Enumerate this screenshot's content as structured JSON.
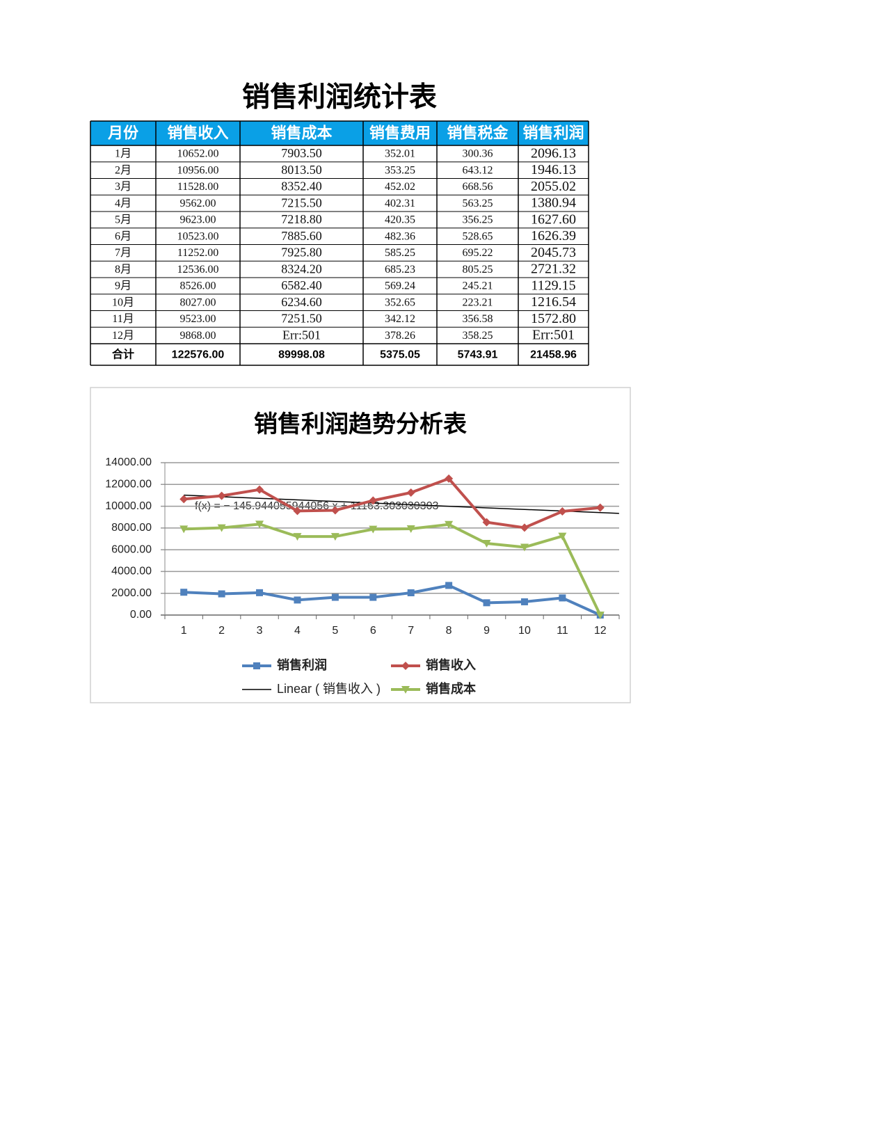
{
  "title": "销售利润统计表",
  "table": {
    "header": [
      "月份",
      "销售收入",
      "销售成本",
      "销售费用",
      "销售税金",
      "销售利润"
    ],
    "rows": [
      [
        "1月",
        "10652.00",
        "7903.50",
        "352.01",
        "300.36",
        "2096.13"
      ],
      [
        "2月",
        "10956.00",
        "8013.50",
        "353.25",
        "643.12",
        "1946.13"
      ],
      [
        "3月",
        "11528.00",
        "8352.40",
        "452.02",
        "668.56",
        "2055.02"
      ],
      [
        "4月",
        "9562.00",
        "7215.50",
        "402.31",
        "563.25",
        "1380.94"
      ],
      [
        "5月",
        "9623.00",
        "7218.80",
        "420.35",
        "356.25",
        "1627.60"
      ],
      [
        "6月",
        "10523.00",
        "7885.60",
        "482.36",
        "528.65",
        "1626.39"
      ],
      [
        "7月",
        "11252.00",
        "7925.80",
        "585.25",
        "695.22",
        "2045.73"
      ],
      [
        "8月",
        "12536.00",
        "8324.20",
        "685.23",
        "805.25",
        "2721.32"
      ],
      [
        "9月",
        "8526.00",
        "6582.40",
        "569.24",
        "245.21",
        "1129.15"
      ],
      [
        "10月",
        "8027.00",
        "6234.60",
        "352.65",
        "223.21",
        "1216.54"
      ],
      [
        "11月",
        "9523.00",
        "7251.50",
        "342.12",
        "356.58",
        "1572.80"
      ],
      [
        "12月",
        "9868.00",
        "Err:501",
        "378.26",
        "358.25",
        "Err:501"
      ]
    ],
    "total": [
      "合计",
      "122576.00",
      "89998.08",
      "5375.05",
      "5743.91",
      "21458.96"
    ]
  },
  "chart_data": {
    "type": "line",
    "title": "销售利润趋势分析表",
    "categories": [
      "1",
      "2",
      "3",
      "4",
      "5",
      "6",
      "7",
      "8",
      "9",
      "10",
      "11",
      "12"
    ],
    "series": [
      {
        "name": "销售利润",
        "color": "#4f81bd",
        "marker": "square",
        "values": [
          2096.13,
          1946.13,
          2055.02,
          1380.94,
          1627.6,
          1626.39,
          2045.73,
          2721.32,
          1129.15,
          1216.54,
          1572.8,
          0
        ]
      },
      {
        "name": "销售收入",
        "color": "#c0504d",
        "marker": "diamond",
        "values": [
          10652,
          10956,
          11528,
          9562,
          9623,
          10523,
          11252,
          12536,
          8526,
          8027,
          9523,
          9868
        ]
      },
      {
        "name": "销售成本",
        "color": "#9bbb59",
        "marker": "triangle-down",
        "values": [
          7903.5,
          8013.5,
          8352.4,
          7215.5,
          7218.8,
          7885.6,
          7925.8,
          8324.2,
          6582.4,
          6234.6,
          7251.5,
          0
        ]
      }
    ],
    "trendline": {
      "name": "Linear ( 销售收入 )",
      "color": "#000000",
      "equation": "f(x) = − 145.944055944056 x + 11163.303030303",
      "slope": -145.944055944056,
      "intercept": 11163.303030303
    },
    "ylim": [
      0,
      14000
    ],
    "yticks": [
      {
        "value": 0,
        "label": "0.00"
      },
      {
        "value": 2000,
        "label": "2000.00"
      },
      {
        "value": 4000,
        "label": "4000.00"
      },
      {
        "value": 6000,
        "label": "6000.00"
      },
      {
        "value": 8000,
        "label": "8000.00"
      },
      {
        "value": 10000,
        "label": "10000.00"
      },
      {
        "value": 12000,
        "label": "12000.00"
      },
      {
        "value": 14000,
        "label": "14000.00"
      }
    ],
    "grid": true
  }
}
